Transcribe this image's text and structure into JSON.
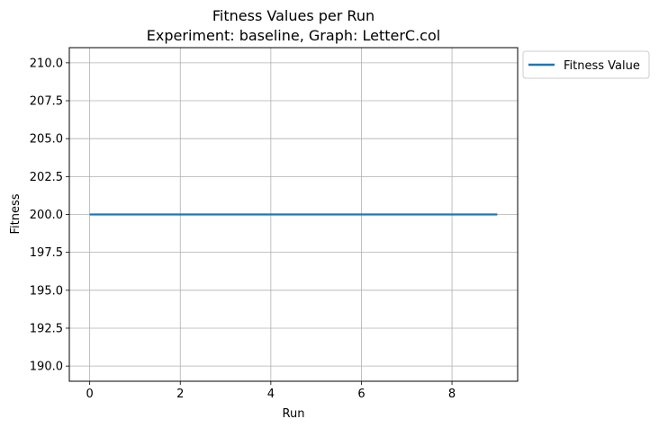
{
  "chart_data": {
    "type": "line",
    "title": "Fitness Values per Run",
    "subtitle": "Experiment: baseline, Graph: LetterC.col",
    "xlabel": "Run",
    "ylabel": "Fitness",
    "xlim": [
      -0.45,
      9.45
    ],
    "ylim": [
      189.0,
      211.0
    ],
    "xticks": [
      0,
      2,
      4,
      6,
      8
    ],
    "xtick_labels": [
      "0",
      "2",
      "4",
      "6",
      "8"
    ],
    "yticks": [
      190.0,
      192.5,
      195.0,
      197.5,
      200.0,
      202.5,
      205.0,
      207.5,
      210.0
    ],
    "ytick_labels": [
      "190.0",
      "192.5",
      "195.0",
      "197.5",
      "200.0",
      "202.5",
      "205.0",
      "207.5",
      "210.0"
    ],
    "grid": true,
    "legend_position": "outside-top-right",
    "series": [
      {
        "name": "Fitness Value",
        "color": "#1f77b4",
        "x": [
          0,
          1,
          2,
          3,
          4,
          5,
          6,
          7,
          8,
          9
        ],
        "y": [
          200,
          200,
          200,
          200,
          200,
          200,
          200,
          200,
          200,
          200
        ]
      }
    ]
  }
}
